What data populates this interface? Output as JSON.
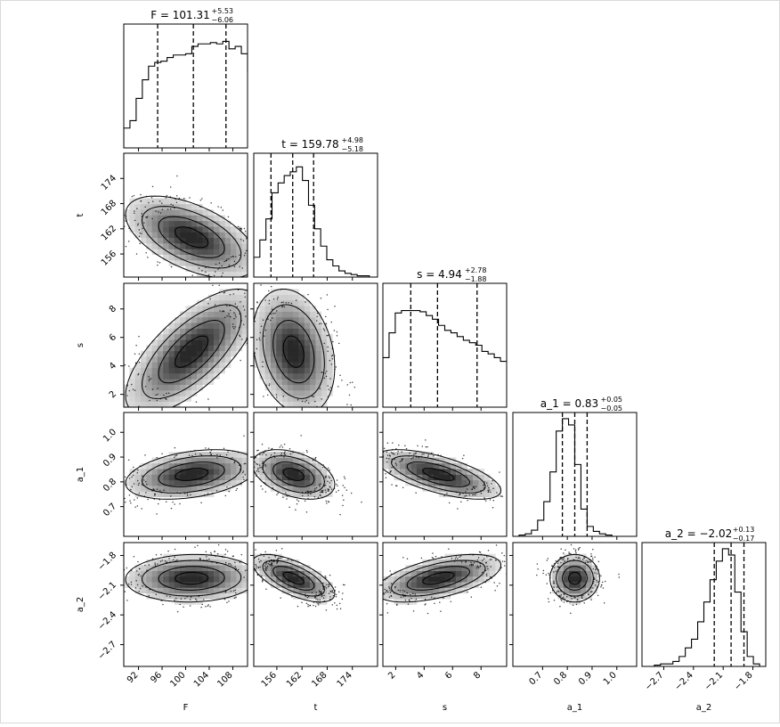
{
  "chart_data": {
    "type": "corner",
    "parameters": [
      "F",
      "t",
      "s",
      "a_1",
      "a_2"
    ],
    "axis_labels": [
      "F",
      "t",
      "s",
      "a_1",
      "a_2"
    ],
    "ranges": {
      "F": [
        89.5,
        110.5
      ],
      "t": [
        150.5,
        180.0
      ],
      "s": [
        1.1,
        9.8
      ],
      "a_1": [
        0.58,
        1.08
      ],
      "a_2": [
        -2.92,
        -1.67
      ]
    },
    "ticks": {
      "F": [
        92,
        96,
        100,
        104,
        108
      ],
      "t": [
        156,
        162,
        168,
        174
      ],
      "s": [
        2,
        4,
        6,
        8
      ],
      "a_1": [
        0.7,
        0.8,
        0.9,
        1.0
      ],
      "a_2": [
        -2.7,
        -2.4,
        -2.1,
        -1.8
      ]
    },
    "tick_labels": {
      "F": [
        "92",
        "96",
        "100",
        "104",
        "108"
      ],
      "t": [
        "156",
        "162",
        "168",
        "174"
      ],
      "s": [
        "2",
        "4",
        "6",
        "8"
      ],
      "a_1": [
        "0.7",
        "0.8",
        "0.9",
        "1.0"
      ],
      "a_2": [
        "−2.7",
        "−2.4",
        "−2.1",
        "−1.8"
      ]
    },
    "titles": [
      {
        "param": "F",
        "label": "F = 101.31",
        "plus": "+5.53",
        "minus": "−6.06"
      },
      {
        "param": "t",
        "label": "t = 159.78",
        "plus": "+4.98",
        "minus": "−5.18"
      },
      {
        "param": "s",
        "label": "s = 4.94",
        "plus": "+2.78",
        "minus": "−1.88"
      },
      {
        "param": "a_1",
        "label": "a_1 = 0.83",
        "plus": "+0.05",
        "minus": "−0.05"
      },
      {
        "param": "a_2",
        "label": "a_2 = −2.02",
        "plus": "+0.13",
        "minus": "−0.17"
      }
    ],
    "quantiles": {
      "F": [
        95.25,
        101.31,
        106.84
      ],
      "t": [
        154.6,
        159.78,
        164.76
      ],
      "s": [
        3.06,
        4.94,
        7.72
      ],
      "a_1": [
        0.78,
        0.83,
        0.88
      ],
      "a_2": [
        -2.19,
        -2.02,
        -1.89
      ]
    },
    "histograms": {
      "F": {
        "edges_start": 89.5,
        "bin_width": 1.05,
        "counts": [
          0.16,
          0.22,
          0.4,
          0.55,
          0.66,
          0.69,
          0.7,
          0.73,
          0.75,
          0.75,
          0.76,
          0.82,
          0.84,
          0.84,
          0.85,
          0.84,
          0.86,
          0.8,
          0.82,
          0.76,
          0.62
        ]
      },
      "t": {
        "edges_start": 150.5,
        "bin_width": 1.45,
        "counts": [
          0.16,
          0.3,
          0.47,
          0.68,
          0.76,
          0.82,
          0.85,
          0.89,
          0.78,
          0.58,
          0.39,
          0.25,
          0.14,
          0.09,
          0.05,
          0.03,
          0.02,
          0.01,
          0.01,
          0.0
        ]
      },
      "s": {
        "edges_start": 1.1,
        "bin_width": 0.435,
        "counts": [
          0.4,
          0.6,
          0.76,
          0.78,
          0.78,
          0.78,
          0.77,
          0.74,
          0.71,
          0.66,
          0.62,
          0.6,
          0.57,
          0.54,
          0.52,
          0.5,
          0.45,
          0.43,
          0.4,
          0.37
        ]
      },
      "a_1": {
        "edges_start": 0.58,
        "bin_width": 0.025,
        "counts": [
          0.0,
          0.01,
          0.02,
          0.05,
          0.13,
          0.28,
          0.52,
          0.85,
          0.95,
          0.9,
          0.58,
          0.22,
          0.08,
          0.04,
          0.02,
          0.01,
          0.0,
          0.0,
          0.0,
          0.0
        ]
      },
      "a_2": {
        "edges_start": -2.92,
        "bin_width": 0.0625,
        "counts": [
          0.0,
          0.0,
          0.01,
          0.02,
          0.02,
          0.04,
          0.08,
          0.15,
          0.22,
          0.36,
          0.52,
          0.7,
          0.85,
          0.95,
          0.9,
          0.6,
          0.28,
          0.08,
          0.02,
          0.0
        ]
      }
    },
    "posteriors": {
      "F": {
        "mean": 101.0,
        "sd": 5.6
      },
      "t": {
        "mean": 160.0,
        "sd": 4.9
      },
      "s": {
        "mean": 5.0,
        "sd": 2.2
      },
      "a_1": {
        "mean": 0.83,
        "sd": 0.05
      },
      "a_2": {
        "mean": -2.03,
        "sd": 0.12
      }
    },
    "correlations": [
      {
        "x": "F",
        "y": "t",
        "rho": -0.55
      },
      {
        "x": "F",
        "y": "s",
        "rho": 0.7
      },
      {
        "x": "t",
        "y": "s",
        "rho": -0.25
      },
      {
        "x": "F",
        "y": "a_1",
        "rho": 0.35
      },
      {
        "x": "t",
        "y": "a_1",
        "rho": -0.4
      },
      {
        "x": "s",
        "y": "a_1",
        "rho": -0.65
      },
      {
        "x": "F",
        "y": "a_2",
        "rho": 0.05
      },
      {
        "x": "t",
        "y": "a_2",
        "rho": -0.65
      },
      {
        "x": "s",
        "y": "a_2",
        "rho": 0.55
      },
      {
        "x": "a_1",
        "y": "a_2",
        "rho": 0.0
      }
    ],
    "contour_levels": [
      0.5,
      1.0,
      1.5,
      2.0
    ],
    "colors": {
      "ink": "#000000",
      "density_dark": "#000000",
      "density_light": "#ffffff",
      "frame": "#000000"
    }
  }
}
